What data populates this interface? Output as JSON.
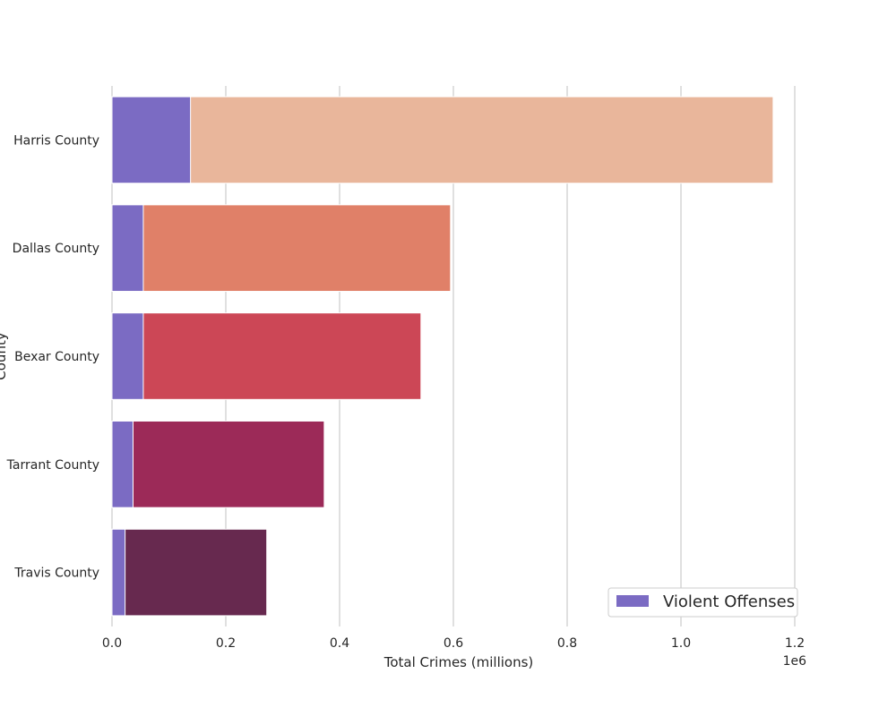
{
  "chart_data": {
    "type": "bar",
    "orientation": "horizontal",
    "title": "",
    "xlabel": "Total Crimes (millions)",
    "ylabel": "County",
    "x_offset_text": "1e6",
    "xlim": [
      0,
      1200000
    ],
    "xticks": [
      0,
      200000,
      400000,
      600000,
      800000,
      1000000,
      1200000
    ],
    "xtick_labels": [
      "0.0",
      "0.2",
      "0.4",
      "0.6",
      "0.8",
      "1.0",
      "1.2"
    ],
    "grid": "vertical",
    "categories": [
      "Harris County",
      "Dallas County",
      "Bexar County",
      "Tarrant County",
      "Travis County"
    ],
    "series": [
      {
        "name": "",
        "values": [
          1162000,
          595000,
          543000,
          373000,
          272000
        ],
        "colors": [
          "#e9b69b",
          "#e08068",
          "#cc4756",
          "#9c2a58",
          "#67294f"
        ]
      },
      {
        "name": "Violent Offenses",
        "values": [
          138000,
          55000,
          55000,
          37000,
          23000
        ],
        "color": "#7b6bc3"
      }
    ],
    "legend": {
      "position": "bottom-right",
      "entries": [
        "Violent Offenses"
      ]
    }
  }
}
